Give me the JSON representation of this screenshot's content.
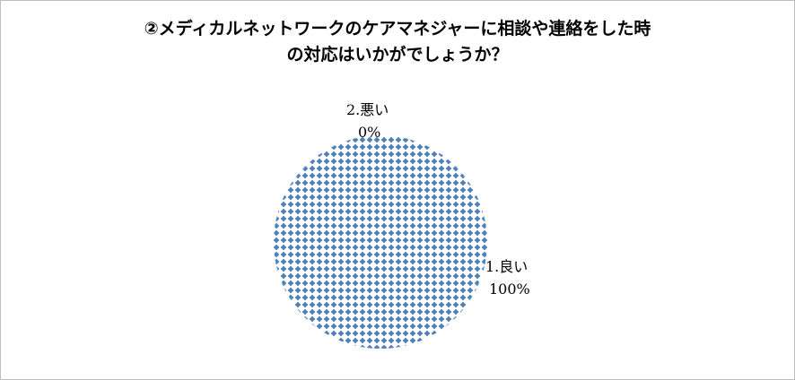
{
  "chart_data": {
    "type": "pie",
    "title_lines": [
      "②メディカルネットワークのケアマネジャーに相談や連絡をした時",
      "の対応はいかがでしょうか？"
    ],
    "categories": [
      "1.良い",
      "2.悪い"
    ],
    "values": [
      100,
      0
    ],
    "percent_labels": [
      "100%",
      "0%"
    ],
    "legend": "none",
    "fill_pattern": "dotted-diamond",
    "colors": {
      "pattern_fg": "#4f81bd",
      "pattern_bg": "#ffffff"
    }
  }
}
